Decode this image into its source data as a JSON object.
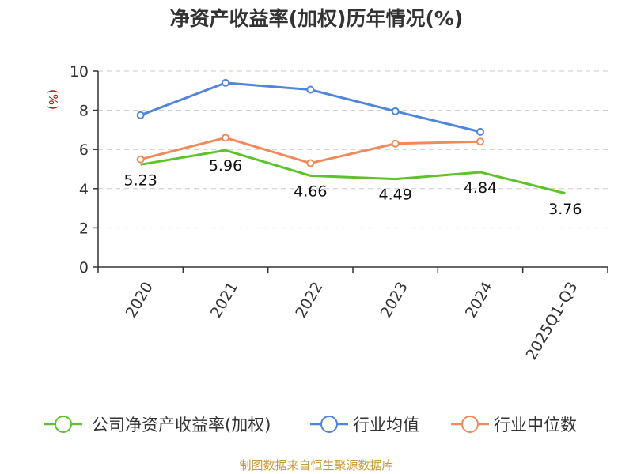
{
  "chart_data": {
    "type": "line",
    "title": "净资产收益率(加权)历年情况(%)",
    "ylabel": "(%)",
    "xlabel": "",
    "ylim": [
      0,
      10
    ],
    "yticks": [
      0,
      2,
      4,
      6,
      8,
      10
    ],
    "grid": "horizontal-dashed",
    "legend_position": "bottom",
    "categories": [
      "2020",
      "2021",
      "2022",
      "2023",
      "2024",
      "2025Q1-Q3"
    ],
    "series": [
      {
        "name": "公司净资产收益率(加权)",
        "color": "#5ec22b",
        "values": [
          5.23,
          5.96,
          4.66,
          4.49,
          4.84,
          3.76
        ],
        "labels": [
          "5.23",
          "5.96",
          "4.66",
          "4.49",
          "4.84",
          "3.76"
        ]
      },
      {
        "name": "行业均值",
        "color": "#4f86dc",
        "values": [
          7.75,
          9.4,
          9.05,
          7.95,
          6.9,
          null
        ]
      },
      {
        "name": "行业中位数",
        "color": "#f08a5a",
        "values": [
          5.5,
          6.6,
          5.3,
          6.3,
          6.4,
          null
        ]
      }
    ],
    "source": "制图数据来自恒生聚源数据库"
  }
}
